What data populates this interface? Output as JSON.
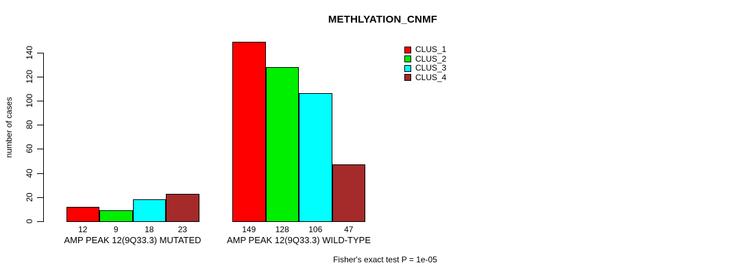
{
  "chart_data": {
    "type": "bar",
    "title": "METHLYATION_CNMF",
    "ylabel": "number of cases",
    "xlabel": "",
    "ylim": [
      0,
      140
    ],
    "yticks": [
      0,
      20,
      40,
      60,
      80,
      100,
      120,
      140
    ],
    "grid": false,
    "legend_position": "top-right",
    "categories": [
      "AMP PEAK 12(9Q33.3) MUTATED",
      "AMP PEAK 12(9Q33.3) WILD-TYPE"
    ],
    "series": [
      {
        "name": "CLUS_1",
        "color": "#FF0000",
        "values": [
          12,
          149
        ]
      },
      {
        "name": "CLUS_2",
        "color": "#00EE00",
        "values": [
          9,
          128
        ]
      },
      {
        "name": "CLUS_3",
        "color": "#00FFFF",
        "values": [
          18,
          106
        ]
      },
      {
        "name": "CLUS_4",
        "color": "#A52A2A",
        "values": [
          23,
          47
        ]
      }
    ],
    "bar_value_labels": [
      [
        "12",
        "9",
        "18",
        "23"
      ],
      [
        "149",
        "128",
        "106",
        "47"
      ]
    ],
    "annotation": "Fisher's exact test P = 1e-05"
  },
  "colors": {
    "axis": "#000000",
    "text": "#000000",
    "background": "#FFFFFF"
  }
}
